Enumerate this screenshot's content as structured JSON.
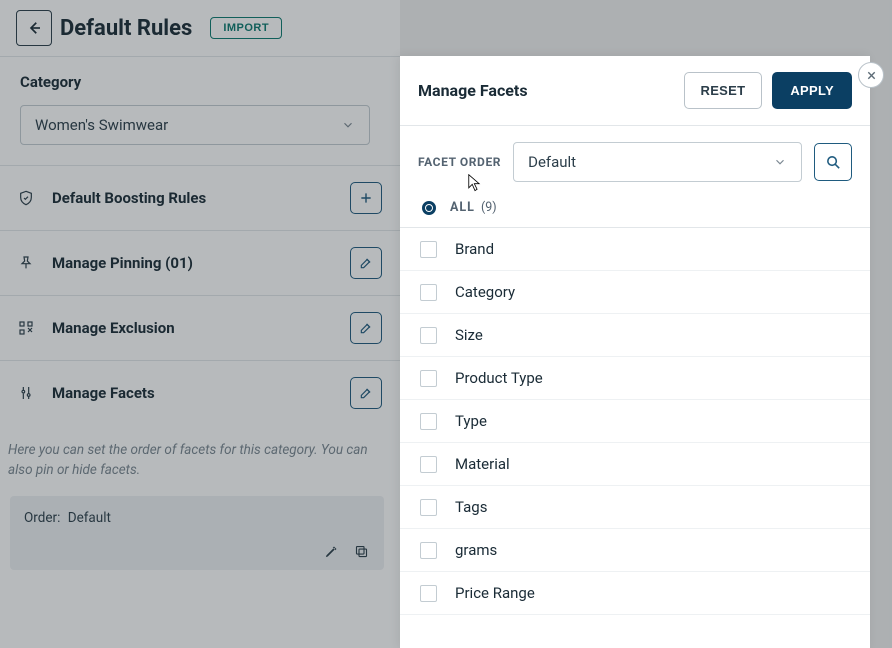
{
  "header": {
    "title": "Default Rules",
    "import_label": "IMPORT"
  },
  "category": {
    "label": "Category",
    "selected": "Women's Swimwear"
  },
  "sections": {
    "boosting": "Default Boosting Rules",
    "pinning": "Manage Pinning (01)",
    "exclusion": "Manage Exclusion",
    "facets": "Manage Facets"
  },
  "facets_hint": "Here you can set the order of facets for this category. You can also pin or hide facets.",
  "order_card": {
    "label": "Order:",
    "value": "Default"
  },
  "panel": {
    "title": "Manage Facets",
    "reset": "RESET",
    "apply": "APPLY",
    "facet_order_label": "FACET ORDER",
    "facet_order_value": "Default",
    "all_label": "ALL",
    "all_count": "(9)",
    "items": [
      {
        "label": "Brand"
      },
      {
        "label": "Category"
      },
      {
        "label": "Size"
      },
      {
        "label": "Product Type"
      },
      {
        "label": "Type"
      },
      {
        "label": "Material"
      },
      {
        "label": "Tags"
      },
      {
        "label": "grams"
      },
      {
        "label": "Price Range"
      }
    ]
  }
}
